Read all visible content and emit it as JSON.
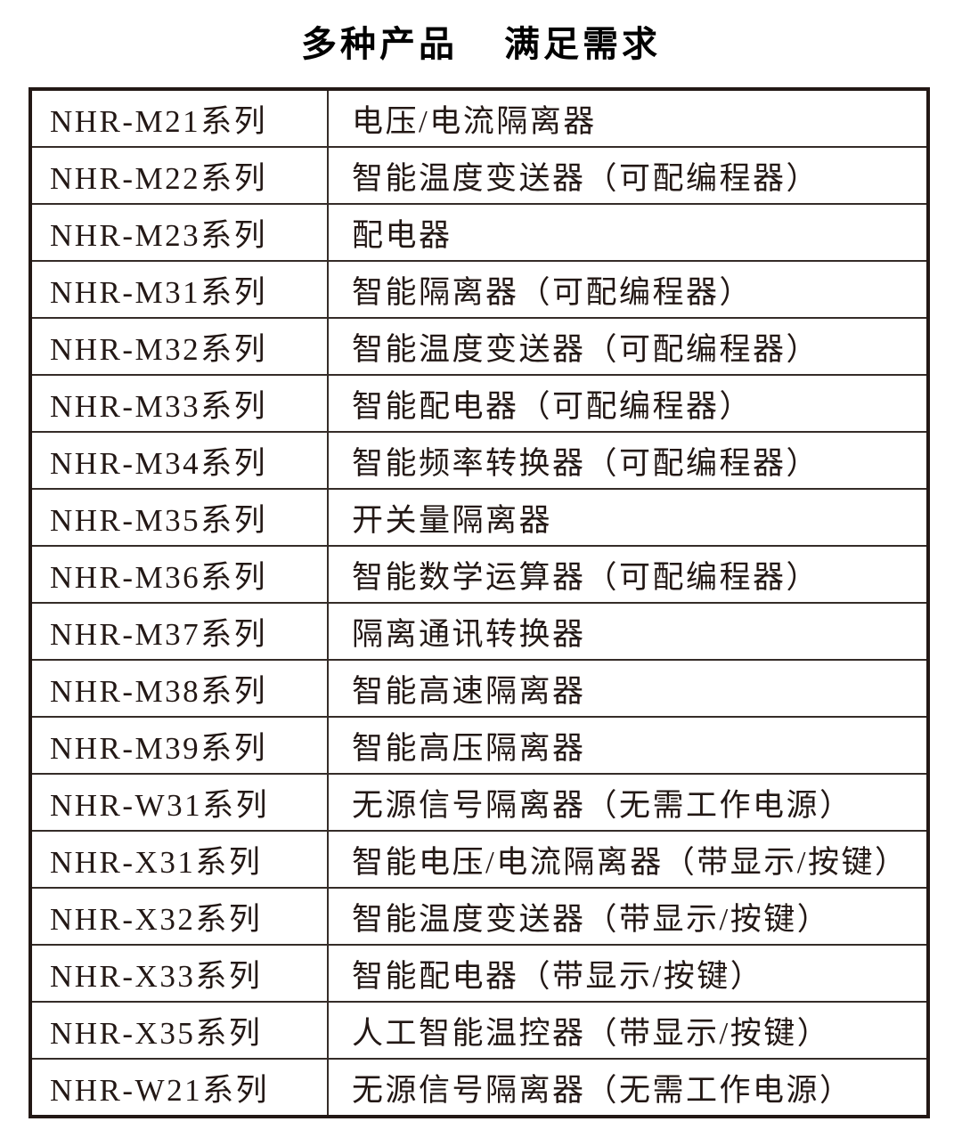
{
  "page": {
    "title": {
      "part1": "多种产品",
      "part2": "满足需求"
    }
  },
  "table": {
    "rows": [
      {
        "series": "NHR-M21系列",
        "description": "电压/电流隔离器"
      },
      {
        "series": "NHR-M22系列",
        "description": "智能温度变送器（可配编程器）"
      },
      {
        "series": "NHR-M23系列",
        "description": "配电器"
      },
      {
        "series": "NHR-M31系列",
        "description": "智能隔离器（可配编程器）"
      },
      {
        "series": "NHR-M32系列",
        "description": "智能温度变送器（可配编程器）"
      },
      {
        "series": "NHR-M33系列",
        "description": "智能配电器（可配编程器）"
      },
      {
        "series": "NHR-M34系列",
        "description": "智能频率转换器（可配编程器）"
      },
      {
        "series": "NHR-M35系列",
        "description": "开关量隔离器"
      },
      {
        "series": "NHR-M36系列",
        "description": "智能数学运算器（可配编程器）"
      },
      {
        "series": "NHR-M37系列",
        "description": "隔离通讯转换器"
      },
      {
        "series": "NHR-M38系列",
        "description": "智能高速隔离器"
      },
      {
        "series": "NHR-M39系列",
        "description": "智能高压隔离器"
      },
      {
        "series": "NHR-W31系列",
        "description": "无源信号隔离器（无需工作电源）"
      },
      {
        "series": "NHR-X31系列",
        "description": "智能电压/电流隔离器（带显示/按键）"
      },
      {
        "series": "NHR-X32系列",
        "description": "智能温度变送器（带显示/按键）"
      },
      {
        "series": "NHR-X33系列",
        "description": "智能配电器（带显示/按键）"
      },
      {
        "series": "NHR-X35系列",
        "description": "人工智能温控器（带显示/按键）"
      },
      {
        "series": "NHR-W21系列",
        "description": "无源信号隔离器（无需工作电源）"
      }
    ],
    "colors": {
      "border_outer": "#231815",
      "border_inner": "#352c28",
      "text": "#231815"
    }
  }
}
